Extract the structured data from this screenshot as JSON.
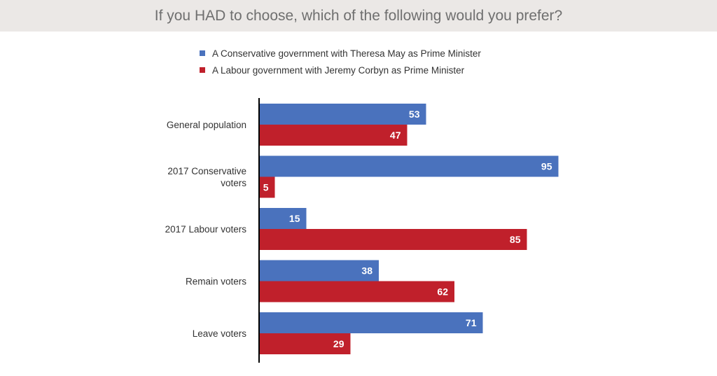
{
  "header": {
    "title": "If you HAD to choose, which of the following would you prefer?"
  },
  "colors": {
    "title_bar": "#ebe8e6",
    "conservative": "#4a72bd",
    "labour": "#c0202b",
    "axis": "#000000"
  },
  "chart_data": {
    "type": "bar",
    "orientation": "horizontal",
    "title": "If you HAD to choose, which of the following would you prefer?",
    "legend_position": "top",
    "grid": false,
    "xlim": [
      0,
      100
    ],
    "categories": [
      "General population",
      "2017 Conservative voters",
      "2017 Labour voters",
      "Remain voters",
      "Leave voters"
    ],
    "series": [
      {
        "name": "A Conservative government with Theresa May as Prime Minister",
        "color": "#4a72bd",
        "values": [
          53,
          95,
          15,
          38,
          71
        ]
      },
      {
        "name": "A Labour government with Jeremy Corbyn as Prime Minister",
        "color": "#c0202b",
        "values": [
          47,
          5,
          85,
          62,
          29
        ]
      }
    ]
  }
}
